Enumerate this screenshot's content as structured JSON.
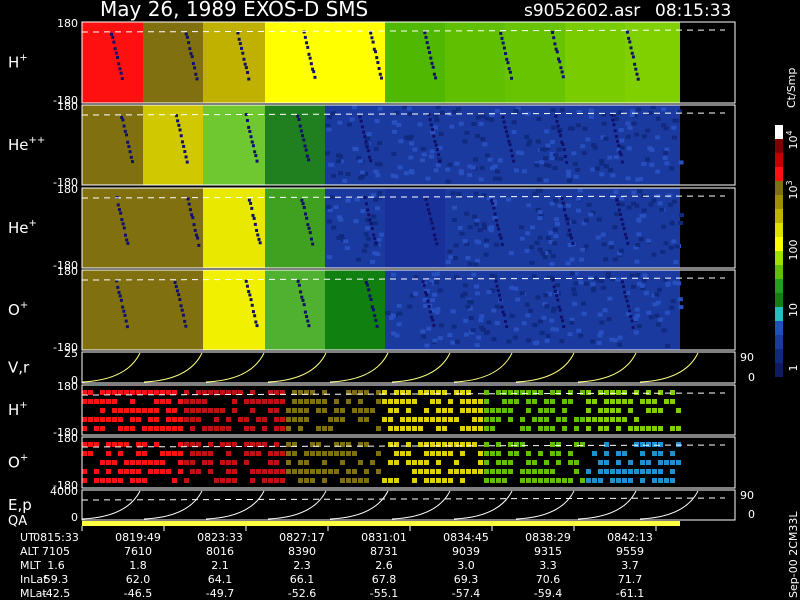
{
  "header": {
    "title": "May 26, 1989   EXOS-D SMS",
    "file": "s9052602.asr",
    "time": "08:15:33"
  },
  "panels": [
    {
      "label": "H",
      "sup": "+",
      "ticks": [
        "180",
        "-180"
      ]
    },
    {
      "label": "He",
      "sup": "++",
      "ticks": [
        "180",
        "-180"
      ]
    },
    {
      "label": "He",
      "sup": "+",
      "ticks": [
        "180",
        "-180"
      ]
    },
    {
      "label": "O",
      "sup": "+",
      "ticks": [
        "180",
        "-180"
      ]
    },
    {
      "label": "V,r",
      "ticks": [
        "25",
        "0"
      ],
      "right_ticks": [
        "90",
        "0"
      ]
    },
    {
      "label": "H",
      "sup": "+",
      "ticks": [
        "180",
        "-180"
      ]
    },
    {
      "label": "O",
      "sup": "+",
      "ticks": [
        "180",
        "-180"
      ]
    },
    {
      "label": "E,p",
      "ticks": [
        "4000",
        "0"
      ],
      "right_ticks": [
        "90",
        "0"
      ]
    }
  ],
  "qa_label": "QA",
  "colorbar": {
    "unit": "Ct/Smp",
    "ticks": [
      {
        "base": "10",
        "exp": "4"
      },
      {
        "base": "10",
        "exp": "3"
      },
      {
        "base": "100"
      },
      {
        "base": "10"
      },
      {
        "base": "1"
      }
    ]
  },
  "side_note": "Sep-00 2CM33L",
  "table": {
    "rows": [
      {
        "label": "UT",
        "values": [
          "0815:33",
          "0819:49",
          "0823:33",
          "0827:17",
          "0831:01",
          "0834:45",
          "0838:29",
          "0842:13"
        ]
      },
      {
        "label": "ALT",
        "values": [
          "7105",
          "7610",
          "8016",
          "8390",
          "8731",
          "9039",
          "9315",
          "9559"
        ]
      },
      {
        "label": "MLT",
        "values": [
          "1.6",
          "1.8",
          "2.1",
          "2.3",
          "2.6",
          "3.0",
          "3.3",
          "3.7"
        ]
      },
      {
        "label": "InLat",
        "values": [
          "59.3",
          "62.0",
          "64.1",
          "66.1",
          "67.8",
          "69.3",
          "70.6",
          "71.7"
        ]
      },
      {
        "label": "MLat",
        "values": [
          "-42.5",
          "-46.5",
          "-49.7",
          "-52.6",
          "-55.1",
          "-57.4",
          "-59.4",
          "-61.1"
        ]
      }
    ]
  }
}
